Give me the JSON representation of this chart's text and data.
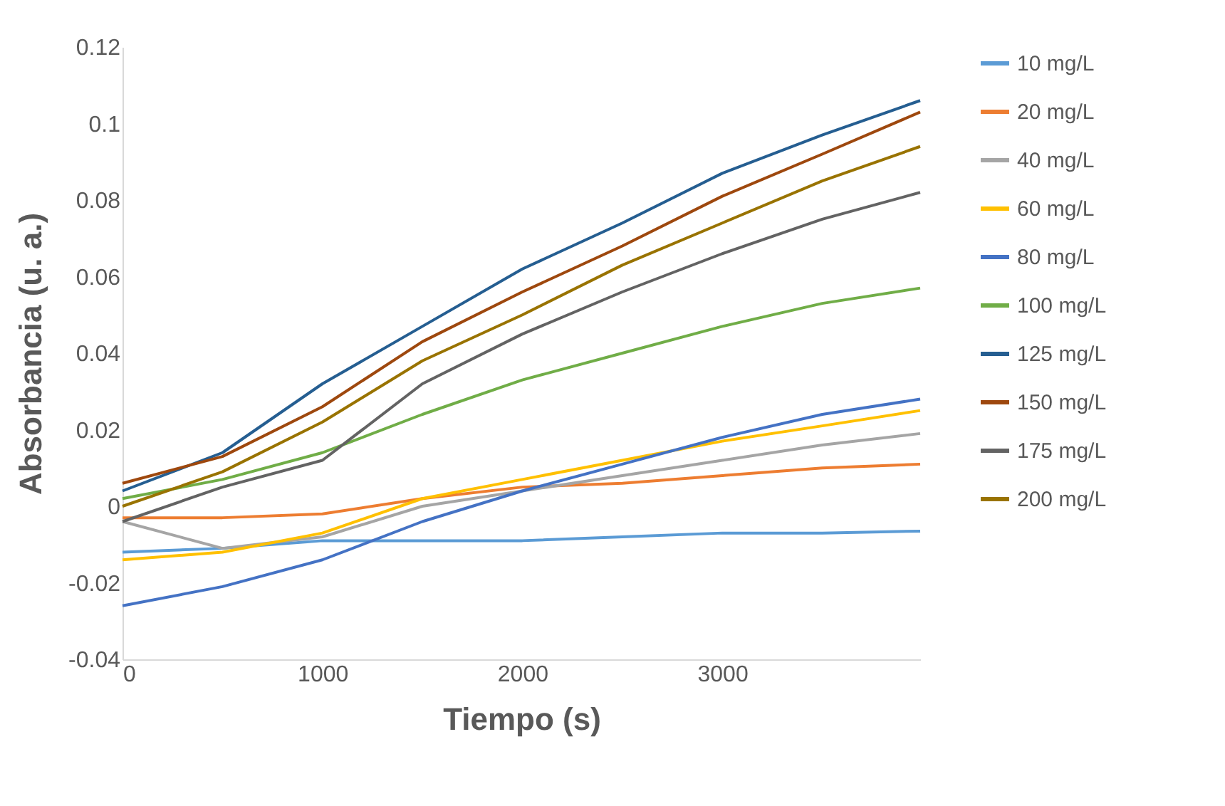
{
  "chart_data": {
    "type": "line",
    "xlabel": "Tiempo (s)",
    "ylabel": "Absorbancia (u. a.)",
    "x": [
      0,
      500,
      1000,
      1500,
      2000,
      2500,
      3000,
      3500,
      3990
    ],
    "xlim": [
      0,
      3990
    ],
    "xticks": [
      0,
      1000,
      2000,
      3000
    ],
    "ylim": [
      -0.04,
      0.12
    ],
    "yticks": [
      -0.04,
      -0.02,
      0,
      0.02,
      0.04,
      0.06,
      0.08,
      0.1,
      0.12
    ],
    "grid": false,
    "legend": "right",
    "marker": "none",
    "line_style": "solid",
    "series": [
      {
        "name": "10 mg/L",
        "color": "#5b9bd5",
        "values": [
          -0.012,
          -0.011,
          -0.009,
          -0.009,
          -0.009,
          -0.008,
          -0.007,
          -0.007,
          -0.0065
        ]
      },
      {
        "name": "20 mg/L",
        "color": "#ed7d31",
        "values": [
          -0.003,
          -0.003,
          -0.002,
          0.002,
          0.005,
          0.006,
          0.008,
          0.01,
          0.011
        ]
      },
      {
        "name": "40 mg/L",
        "color": "#a5a5a5",
        "values": [
          -0.004,
          -0.011,
          -0.008,
          0.0,
          0.004,
          0.008,
          0.012,
          0.016,
          0.019
        ]
      },
      {
        "name": "60 mg/L",
        "color": "#ffc000",
        "values": [
          -0.014,
          -0.012,
          -0.007,
          0.002,
          0.007,
          0.012,
          0.017,
          0.021,
          0.025
        ]
      },
      {
        "name": "80 mg/L",
        "color": "#4472c4",
        "values": [
          -0.026,
          -0.021,
          -0.014,
          -0.004,
          0.004,
          0.011,
          0.018,
          0.024,
          0.028
        ]
      },
      {
        "name": "100 mg/L",
        "color": "#70ad47",
        "values": [
          0.002,
          0.007,
          0.014,
          0.024,
          0.033,
          0.04,
          0.047,
          0.053,
          0.057
        ]
      },
      {
        "name": "125 mg/L",
        "color": "#255e91",
        "values": [
          0.004,
          0.014,
          0.032,
          0.047,
          0.062,
          0.074,
          0.087,
          0.097,
          0.106
        ]
      },
      {
        "name": "150 mg/L",
        "color": "#9e480e",
        "values": [
          0.006,
          0.013,
          0.026,
          0.043,
          0.056,
          0.068,
          0.081,
          0.092,
          0.103
        ]
      },
      {
        "name": "175 mg/L",
        "color": "#636363",
        "values": [
          -0.004,
          0.005,
          0.012,
          0.032,
          0.045,
          0.056,
          0.066,
          0.075,
          0.082
        ]
      },
      {
        "name": "200 mg/L",
        "color": "#997300",
        "values": [
          0.0,
          0.009,
          0.022,
          0.038,
          0.05,
          0.063,
          0.074,
          0.085,
          0.094
        ]
      }
    ]
  }
}
